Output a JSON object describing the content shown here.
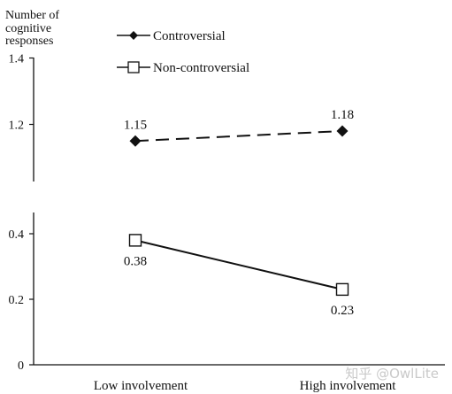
{
  "chart_data": {
    "type": "line",
    "ylabel_lines": [
      "Number of",
      "cognitive",
      "responses"
    ],
    "categories": [
      "Low involvement",
      "High involvement"
    ],
    "series": [
      {
        "name": "Controversial",
        "values": [
          1.15,
          1.18
        ],
        "labels": [
          "1.15",
          "1.18"
        ],
        "marker": "filled-diamond",
        "line": "dashed"
      },
      {
        "name": "Non-controversial",
        "values": [
          0.38,
          0.23
        ],
        "labels": [
          "0.38",
          "0.23"
        ],
        "marker": "open-square",
        "line": "solid"
      }
    ],
    "axis_break": true,
    "upper_ylim": [
      1.0,
      1.4
    ],
    "upper_ticks": [
      "1.4",
      "1.2"
    ],
    "lower_ylim": [
      0,
      0.47
    ],
    "lower_ticks": [
      "0.4",
      "0.2",
      "0"
    ],
    "grid": false,
    "legend_position": "top"
  },
  "watermark": "知乎 @OwlLite",
  "colors": {
    "ink": "#111111",
    "watermark": "#c9c9c9"
  }
}
